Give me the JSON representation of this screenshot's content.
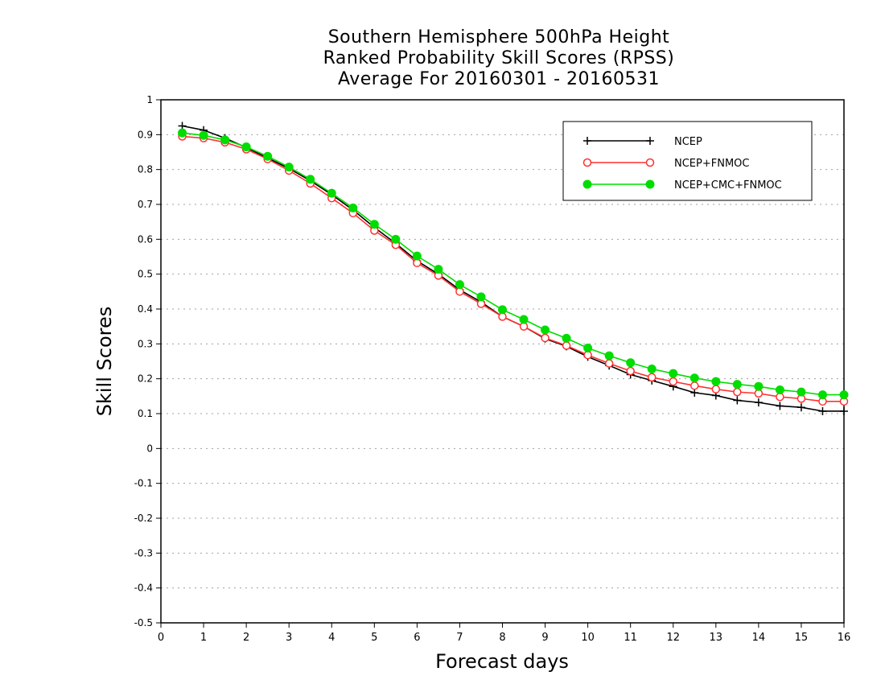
{
  "chart_data": {
    "type": "line",
    "title": [
      "Southern Hemisphere 500hPa Height",
      "Ranked Probability Skill Scores (RPSS)",
      "Average For 20160301 - 20160531"
    ],
    "xlabel": "Forecast days",
    "ylabel": "Skill Scores",
    "xlim": [
      0,
      16
    ],
    "ylim": [
      -0.5,
      1
    ],
    "xticks": [
      "0",
      "1",
      "2",
      "3",
      "4",
      "5",
      "6",
      "7",
      "8",
      "9",
      "10",
      "11",
      "12",
      "13",
      "14",
      "15",
      "16"
    ],
    "yticks": [
      "1",
      "0.9",
      "0.8",
      "0.7",
      "0.6",
      "0.5",
      "0.4",
      "0.3",
      "0.2",
      "0.1",
      "0",
      "-0.1",
      "-0.2",
      "-0.3",
      "-0.4",
      "-0.5"
    ],
    "grid": "horizontal dotted",
    "legend_position": "top-right",
    "x": [
      0.5,
      1,
      1.5,
      2,
      2.5,
      3,
      3.5,
      4,
      4.5,
      5,
      5.5,
      6,
      6.5,
      7,
      7.5,
      8,
      8.5,
      9,
      9.5,
      10,
      10.5,
      11,
      11.5,
      12,
      12.5,
      13,
      13.5,
      14,
      14.5,
      15,
      15.5,
      16
    ],
    "series": [
      {
        "name": "NCEP",
        "color": "#000000",
        "marker": "plus",
        "values": [
          0.925,
          0.913,
          0.89,
          0.863,
          0.833,
          0.803,
          0.768,
          0.728,
          0.684,
          0.634,
          0.588,
          0.538,
          0.5,
          0.455,
          0.42,
          0.378,
          0.35,
          0.315,
          0.293,
          0.263,
          0.238,
          0.212,
          0.195,
          0.178,
          0.16,
          0.152,
          0.138,
          0.132,
          0.122,
          0.118,
          0.107,
          0.107
        ]
      },
      {
        "name": "NCEP+FNMOC",
        "color": "#ff3030",
        "marker": "open-circle",
        "values": [
          0.895,
          0.89,
          0.878,
          0.858,
          0.83,
          0.797,
          0.76,
          0.718,
          0.675,
          0.625,
          0.584,
          0.532,
          0.496,
          0.45,
          0.415,
          0.378,
          0.35,
          0.317,
          0.295,
          0.268,
          0.244,
          0.222,
          0.204,
          0.192,
          0.18,
          0.17,
          0.162,
          0.158,
          0.148,
          0.143,
          0.135,
          0.135
        ]
      },
      {
        "name": "NCEP+CMC+FNMOC",
        "color": "#00dd00",
        "marker": "filled-circle",
        "values": [
          0.905,
          0.898,
          0.885,
          0.865,
          0.838,
          0.807,
          0.772,
          0.732,
          0.69,
          0.643,
          0.6,
          0.552,
          0.514,
          0.47,
          0.435,
          0.398,
          0.37,
          0.34,
          0.316,
          0.288,
          0.266,
          0.246,
          0.228,
          0.215,
          0.202,
          0.192,
          0.184,
          0.178,
          0.168,
          0.162,
          0.154,
          0.154
        ]
      }
    ]
  }
}
